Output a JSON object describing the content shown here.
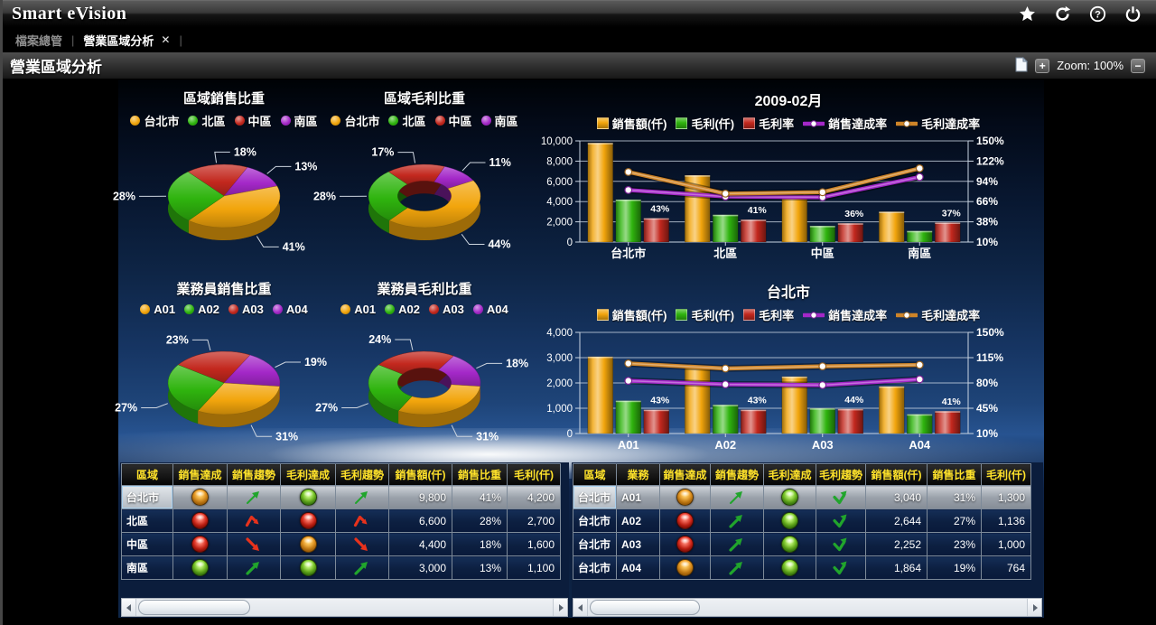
{
  "app": {
    "title": "Smart eVision"
  },
  "tabs": {
    "items": [
      {
        "label": "檔案總管",
        "active": false
      },
      {
        "label": "營業區域分析",
        "active": true,
        "close_glyph": "✕"
      }
    ],
    "separator": "|"
  },
  "toolbar": {
    "title": "營業區域分析",
    "zoom_label": "Zoom: 100%",
    "zoom_in_glyph": "+",
    "zoom_out_glyph": "−"
  },
  "colors": {
    "yellow": "#F2A50C",
    "green": "#2FB40E",
    "red": "#C3281E",
    "purple": "#A428C8",
    "orange": "#C8donotuse",
    "orange_line": "#CE8428",
    "status_orange": "#F59B18",
    "status_red": "#E02318",
    "status_green": "#6CC41C",
    "trend_green": "#21A52C",
    "trend_red": "#E8321C"
  },
  "chart_data": [
    {
      "id": "region-sales-share",
      "type": "pie",
      "title": "區域銷售比重",
      "donut": false,
      "start_angle": -40,
      "legend": [
        {
          "label": "台北市",
          "color": "#F2A50C"
        },
        {
          "label": "北區",
          "color": "#2FB40E"
        },
        {
          "label": "中區",
          "color": "#C3281E"
        },
        {
          "label": "南區",
          "color": "#A428C8"
        }
      ],
      "slices": [
        {
          "label": "中區",
          "value": 18
        },
        {
          "label": "南區",
          "value": 13
        },
        {
          "label": "台北市",
          "value": 41
        },
        {
          "label": "北區",
          "value": 28
        }
      ]
    },
    {
      "id": "region-margin-share",
      "type": "pie",
      "title": "區域毛利比重",
      "donut": true,
      "start_angle": -40,
      "legend": [
        {
          "label": "台北市",
          "color": "#F2A50C"
        },
        {
          "label": "北區",
          "color": "#2FB40E"
        },
        {
          "label": "中區",
          "color": "#C3281E"
        },
        {
          "label": "南區",
          "color": "#A428C8"
        }
      ],
      "slices": [
        {
          "label": "中區",
          "value": 17
        },
        {
          "label": "南區",
          "value": 11
        },
        {
          "label": "台北市",
          "value": 44
        },
        {
          "label": "北區",
          "value": 28
        }
      ]
    },
    {
      "id": "agent-sales-share",
      "type": "pie",
      "title": "業務員銷售比重",
      "donut": false,
      "start_angle": -55,
      "legend": [
        {
          "label": "A01",
          "color": "#F2A50C"
        },
        {
          "label": "A02",
          "color": "#2FB40E"
        },
        {
          "label": "A03",
          "color": "#C3281E"
        },
        {
          "label": "A04",
          "color": "#A428C8"
        }
      ],
      "slices": [
        {
          "label": "A03",
          "value": 23
        },
        {
          "label": "A04",
          "value": 19
        },
        {
          "label": "A01",
          "value": 31
        },
        {
          "label": "A02",
          "value": 27
        }
      ]
    },
    {
      "id": "agent-margin-share",
      "type": "pie",
      "title": "業務員毛利比重",
      "donut": true,
      "start_angle": -55,
      "legend": [
        {
          "label": "A01",
          "color": "#F2A50C"
        },
        {
          "label": "A02",
          "color": "#2FB40E"
        },
        {
          "label": "A03",
          "color": "#C3281E"
        },
        {
          "label": "A04",
          "color": "#A428C8"
        }
      ],
      "slices": [
        {
          "label": "A03",
          "value": 24
        },
        {
          "label": "A04",
          "value": 18
        },
        {
          "label": "A01",
          "value": 31
        },
        {
          "label": "A02",
          "value": 27
        }
      ]
    },
    {
      "id": "month-by-region",
      "type": "combo",
      "title": "2009-02月",
      "categories": [
        "台北市",
        "北區",
        "中區",
        "南區"
      ],
      "left_axis": {
        "tick_labels": [
          "0",
          "2,000",
          "4,000",
          "6,000",
          "8,000",
          "10,000"
        ],
        "tick_values": [
          0,
          2000,
          4000,
          6000,
          8000,
          10000
        ],
        "max": 10000
      },
      "right_axis": {
        "tick_labels": [
          "10%",
          "38%",
          "66%",
          "94%",
          "122%",
          "150%"
        ],
        "tick_values": [
          10,
          38,
          66,
          94,
          122,
          150
        ],
        "min": 10,
        "max": 150
      },
      "series": [
        {
          "name": "銷售額(仟)",
          "kind": "bar",
          "axis": "left",
          "color": "yellow",
          "values": [
            9800,
            6600,
            4400,
            3000
          ]
        },
        {
          "name": "毛利(仟)",
          "kind": "bar",
          "axis": "left",
          "color": "green",
          "values": [
            4200,
            2700,
            1600,
            1100
          ]
        },
        {
          "name": "毛利率",
          "kind": "bar",
          "axis": "right",
          "color": "red",
          "values": [
            43,
            41,
            36,
            37
          ],
          "value_labels": [
            "43%",
            "41%",
            "36%",
            "37%"
          ]
        },
        {
          "name": "銷售達成率",
          "kind": "line",
          "axis": "right",
          "color": "purple",
          "values": [
            82,
            73,
            72,
            100
          ]
        },
        {
          "name": "毛利達成率",
          "kind": "line",
          "axis": "right",
          "color": "orange_line",
          "values": [
            107,
            77,
            79,
            112
          ]
        }
      ]
    },
    {
      "id": "taipei-by-agent",
      "type": "combo",
      "title": "台北市",
      "categories": [
        "A01",
        "A02",
        "A03",
        "A04"
      ],
      "left_axis": {
        "tick_labels": [
          "0",
          "1,000",
          "2,000",
          "3,000",
          "4,000"
        ],
        "tick_values": [
          0,
          1000,
          2000,
          3000,
          4000
        ],
        "max": 4000
      },
      "right_axis": {
        "tick_labels": [
          "10%",
          "45%",
          "80%",
          "115%",
          "150%"
        ],
        "tick_values": [
          10,
          45,
          80,
          115,
          150
        ],
        "min": 10,
        "max": 150
      },
      "series": [
        {
          "name": "銷售額(仟)",
          "kind": "bar",
          "axis": "left",
          "color": "yellow",
          "values": [
            3040,
            2644,
            2252,
            1864
          ]
        },
        {
          "name": "毛利(仟)",
          "kind": "bar",
          "axis": "left",
          "color": "green",
          "values": [
            1300,
            1136,
            1000,
            764
          ]
        },
        {
          "name": "毛利率",
          "kind": "bar",
          "axis": "right",
          "color": "red",
          "values": [
            43,
            43,
            44,
            41
          ],
          "value_labels": [
            "43%",
            "43%",
            "44%",
            "41%"
          ]
        },
        {
          "name": "銷售達成率",
          "kind": "line",
          "axis": "right",
          "color": "purple",
          "values": [
            83,
            78,
            77,
            85
          ]
        },
        {
          "name": "毛利達成率",
          "kind": "line",
          "axis": "right",
          "color": "orange_line",
          "values": [
            107,
            100,
            103,
            105
          ]
        }
      ]
    }
  ],
  "tables": {
    "left": {
      "headers": [
        "區域",
        "銷售達成",
        "銷售趨勢",
        "毛利達成",
        "毛利趨勢",
        "銷售額(仟)",
        "銷售比重",
        "毛利(仟)"
      ],
      "rows": [
        {
          "selected": true,
          "cells": [
            {
              "t": "text",
              "v": "台北市",
              "focus": true
            },
            {
              "t": "light",
              "v": "orange"
            },
            {
              "t": "trend",
              "shape": "up",
              "color": "green",
              "weight": "thin"
            },
            {
              "t": "light",
              "v": "green"
            },
            {
              "t": "trend",
              "shape": "up",
              "color": "green",
              "weight": "thin"
            },
            {
              "t": "num",
              "v": "9,800"
            },
            {
              "t": "num",
              "v": "41%"
            },
            {
              "t": "num",
              "v": "4,200"
            }
          ]
        },
        {
          "cells": [
            {
              "t": "text",
              "v": "北區"
            },
            {
              "t": "light",
              "v": "red"
            },
            {
              "t": "trend",
              "shape": "peak",
              "color": "red"
            },
            {
              "t": "light",
              "v": "red"
            },
            {
              "t": "trend",
              "shape": "peak",
              "color": "red"
            },
            {
              "t": "num",
              "v": "6,600"
            },
            {
              "t": "num",
              "v": "28%"
            },
            {
              "t": "num",
              "v": "2,700"
            }
          ]
        },
        {
          "cells": [
            {
              "t": "text",
              "v": "中區"
            },
            {
              "t": "light",
              "v": "red"
            },
            {
              "t": "trend",
              "shape": "down",
              "color": "red"
            },
            {
              "t": "light",
              "v": "orange"
            },
            {
              "t": "trend",
              "shape": "down",
              "color": "red"
            },
            {
              "t": "num",
              "v": "4,400"
            },
            {
              "t": "num",
              "v": "18%"
            },
            {
              "t": "num",
              "v": "1,600"
            }
          ]
        },
        {
          "cells": [
            {
              "t": "text",
              "v": "南區"
            },
            {
              "t": "light",
              "v": "green"
            },
            {
              "t": "trend",
              "shape": "up",
              "color": "green"
            },
            {
              "t": "light",
              "v": "green"
            },
            {
              "t": "trend",
              "shape": "up",
              "color": "green"
            },
            {
              "t": "num",
              "v": "3,000"
            },
            {
              "t": "num",
              "v": "13%"
            },
            {
              "t": "num",
              "v": "1,100"
            }
          ]
        }
      ]
    },
    "right": {
      "headers": [
        "區域",
        "業務",
        "銷售達成",
        "銷售趨勢",
        "毛利達成",
        "毛利趨勢",
        "銷售額(仟)",
        "銷售比重",
        "毛利(仟)"
      ],
      "rows": [
        {
          "selected": true,
          "cells": [
            {
              "t": "text",
              "v": "台北市",
              "focus": true
            },
            {
              "t": "text",
              "v": "A01"
            },
            {
              "t": "light",
              "v": "orange"
            },
            {
              "t": "trend",
              "shape": "up",
              "color": "green",
              "weight": "thin"
            },
            {
              "t": "light",
              "v": "green"
            },
            {
              "t": "trend",
              "shape": "check",
              "color": "green"
            },
            {
              "t": "num",
              "v": "3,040"
            },
            {
              "t": "num",
              "v": "31%"
            },
            {
              "t": "num",
              "v": "1,300"
            }
          ]
        },
        {
          "cells": [
            {
              "t": "text",
              "v": "台北市"
            },
            {
              "t": "text",
              "v": "A02"
            },
            {
              "t": "light",
              "v": "red"
            },
            {
              "t": "trend",
              "shape": "up",
              "color": "green"
            },
            {
              "t": "light",
              "v": "green"
            },
            {
              "t": "trend",
              "shape": "check",
              "color": "green"
            },
            {
              "t": "num",
              "v": "2,644"
            },
            {
              "t": "num",
              "v": "27%"
            },
            {
              "t": "num",
              "v": "1,136"
            }
          ]
        },
        {
          "cells": [
            {
              "t": "text",
              "v": "台北市"
            },
            {
              "t": "text",
              "v": "A03"
            },
            {
              "t": "light",
              "v": "red"
            },
            {
              "t": "trend",
              "shape": "up",
              "color": "green"
            },
            {
              "t": "light",
              "v": "green"
            },
            {
              "t": "trend",
              "shape": "check",
              "color": "green"
            },
            {
              "t": "num",
              "v": "2,252"
            },
            {
              "t": "num",
              "v": "23%"
            },
            {
              "t": "num",
              "v": "1,000"
            }
          ]
        },
        {
          "cells": [
            {
              "t": "text",
              "v": "台北市"
            },
            {
              "t": "text",
              "v": "A04"
            },
            {
              "t": "light",
              "v": "orange"
            },
            {
              "t": "trend",
              "shape": "up",
              "color": "green"
            },
            {
              "t": "light",
              "v": "green"
            },
            {
              "t": "trend",
              "shape": "check",
              "color": "green"
            },
            {
              "t": "num",
              "v": "1,864"
            },
            {
              "t": "num",
              "v": "19%"
            },
            {
              "t": "num",
              "v": "764"
            }
          ]
        }
      ]
    }
  }
}
